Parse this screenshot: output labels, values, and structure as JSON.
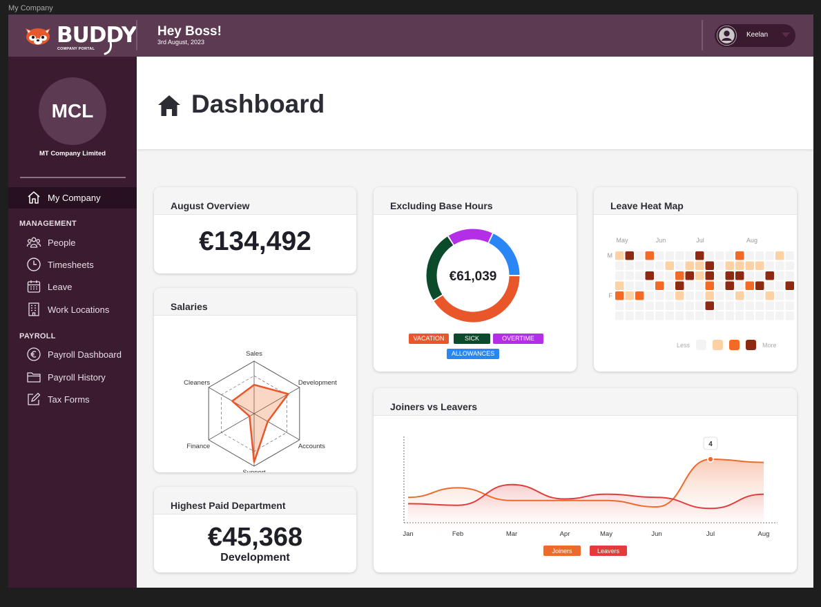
{
  "frame_label": "My Company",
  "brand": {
    "name": "BUDDY",
    "tagline": "COMPANY PORTAL"
  },
  "header": {
    "greeting": "Hey Boss!",
    "date": "3rd August, 2023",
    "user_name": "Keelan"
  },
  "company": {
    "initials": "MCL",
    "name": "MT Company Limited"
  },
  "sidebar": {
    "active_item": "My Company",
    "management_label": "MANAGEMENT",
    "management_items": [
      {
        "label": "People",
        "icon": "people-icon"
      },
      {
        "label": "Timesheets",
        "icon": "clock-icon"
      },
      {
        "label": "Leave",
        "icon": "calendar-icon"
      },
      {
        "label": "Work Locations",
        "icon": "building-icon"
      }
    ],
    "payroll_label": "PAYROLL",
    "payroll_items": [
      {
        "label": "Payroll Dashboard",
        "icon": "euro-icon"
      },
      {
        "label": "Payroll History",
        "icon": "folder-icon"
      },
      {
        "label": "Tax Forms",
        "icon": "edit-icon"
      }
    ]
  },
  "page": {
    "title": "Dashboard"
  },
  "cards": {
    "overview": {
      "title": "August Overview",
      "value": "€134,492"
    },
    "salaries": {
      "title": "Salaries"
    },
    "highest_paid": {
      "title": "Highest Paid Department",
      "value": "€45,368",
      "department": "Development"
    },
    "base_hours": {
      "title": "Excluding Base Hours",
      "center_value": "€61,039"
    },
    "heatmap": {
      "title": "Leave Heat Map",
      "less_label": "Less",
      "more_label": "More"
    },
    "joiners": {
      "title": "Joiners vs Leavers",
      "tooltip": "4"
    }
  },
  "colors": {
    "brand": "#5b3a52",
    "sidebar": "#3b1b30",
    "vacation": "#e8562a",
    "sick": "#0b4a2a",
    "overtime": "#b42ee8",
    "allowances": "#2b86f5",
    "joiners": "#ee6a2c",
    "leavers": "#e33b3b",
    "heat_levels": [
      "#f3f3f3",
      "#fcd2a4",
      "#f36a26",
      "#8f2a12"
    ]
  },
  "chart_data": [
    {
      "type": "radar",
      "title": "Salaries",
      "axes": [
        "Sales",
        "Development",
        "Accounts",
        "Support",
        "Finance",
        "Cleaners"
      ],
      "values": [
        0.55,
        0.75,
        0.3,
        0.92,
        0.1,
        0.48
      ],
      "range": [
        0,
        1
      ]
    },
    {
      "type": "pie",
      "title": "Excluding Base Hours",
      "center_label": "€61,039",
      "categories": [
        "VACATION",
        "SICK",
        "OVERTIME",
        "ALLOWANCES"
      ],
      "values": [
        41,
        25,
        16,
        18
      ]
    },
    {
      "type": "heatmap",
      "title": "Leave Heat Map",
      "month_labels": [
        "May",
        "Jun",
        "Jul",
        "Aug"
      ],
      "row_labels": [
        "M",
        "",
        "",
        "",
        "F",
        "",
        ""
      ],
      "levels": [
        [
          1,
          3,
          0,
          2,
          0,
          0,
          0,
          0,
          3,
          0,
          0,
          0,
          2,
          0,
          0,
          0,
          1,
          0
        ],
        [
          0,
          0,
          0,
          0,
          0,
          1,
          0,
          1,
          1,
          3,
          0,
          1,
          1,
          1,
          1,
          0,
          0,
          0
        ],
        [
          0,
          0,
          0,
          3,
          0,
          0,
          2,
          3,
          1,
          3,
          0,
          3,
          3,
          0,
          0,
          3,
          0,
          0
        ],
        [
          1,
          0,
          0,
          0,
          2,
          0,
          3,
          0,
          0,
          2,
          0,
          3,
          0,
          2,
          3,
          0,
          0,
          3
        ],
        [
          2,
          1,
          2,
          0,
          0,
          0,
          1,
          0,
          0,
          1,
          0,
          0,
          1,
          0,
          0,
          1,
          0,
          0
        ],
        [
          0,
          0,
          0,
          0,
          0,
          0,
          0,
          0,
          0,
          3,
          0,
          0,
          0,
          0,
          0,
          0,
          0,
          0
        ],
        [
          0,
          0,
          0,
          0,
          0,
          0,
          0,
          0,
          0,
          0,
          0,
          0,
          0,
          0,
          0,
          0,
          0,
          0
        ]
      ],
      "legend": [
        "Less",
        "More"
      ]
    },
    {
      "type": "line",
      "title": "Joiners vs Leavers",
      "x": [
        "Jan",
        "Feb",
        "Mar",
        "Apr",
        "May",
        "Jun",
        "Jul",
        "Aug"
      ],
      "series": [
        {
          "name": "Joiners",
          "values": [
            1.6,
            2.2,
            1.4,
            1.4,
            1.4,
            1.0,
            4.0,
            3.8
          ]
        },
        {
          "name": "Leavers",
          "values": [
            1.2,
            1.1,
            2.4,
            1.5,
            1.8,
            1.6,
            0.9,
            1.8
          ]
        }
      ],
      "annotation": {
        "x": "Jul",
        "series": "Joiners",
        "label": "4"
      },
      "ylim": [
        0,
        5
      ]
    }
  ]
}
